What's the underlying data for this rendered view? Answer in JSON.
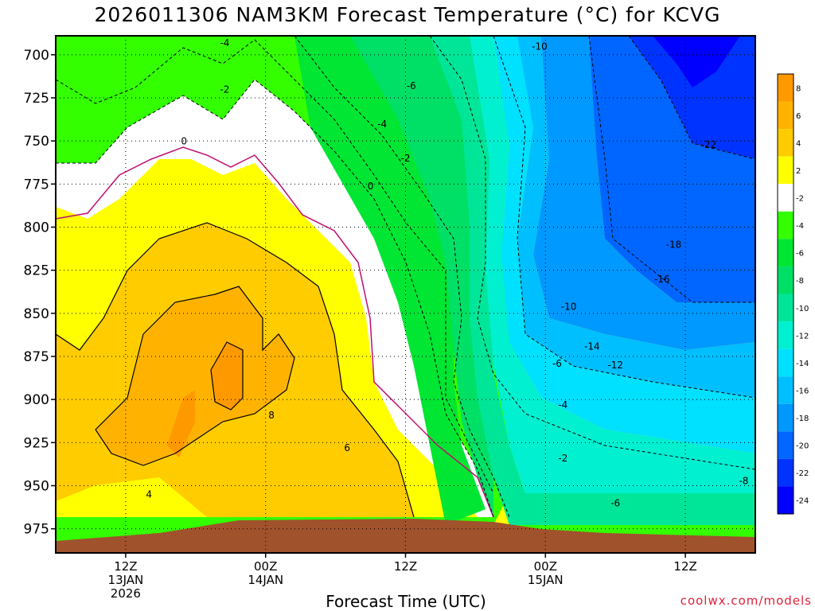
{
  "title": "2026011306 NAM3KM Forecast Temperature (°C) for KCVG",
  "xlabel": "Forecast Time (UTC)",
  "credit": "coolwx.com/models",
  "chart_data": {
    "type": "heatmap",
    "title": "2026011306 NAM3KM Forecast Temperature (°C) for KCVG",
    "xlabel": "Forecast Time (UTC)",
    "ylabel": "",
    "x_ticks": [
      {
        "lines": [
          "12Z",
          "13JAN",
          "2026"
        ],
        "hour": 6
      },
      {
        "lines": [
          "00Z",
          "14JAN"
        ],
        "hour": 18
      },
      {
        "lines": [
          "12Z"
        ],
        "hour": 30
      },
      {
        "lines": [
          "00Z",
          "15JAN"
        ],
        "hour": 42
      },
      {
        "lines": [
          "12Z"
        ],
        "hour": 54
      }
    ],
    "xlim_hours": [
      0,
      60
    ],
    "y_ticks": [
      700,
      725,
      750,
      775,
      800,
      825,
      850,
      875,
      900,
      925,
      950,
      975
    ],
    "ylim": [
      689,
      989
    ],
    "grid": true,
    "colorbar": {
      "labels": [
        "8",
        "6",
        "4",
        "2",
        "-2",
        "-4",
        "-6",
        "-8",
        "-10",
        "-12",
        "-14",
        "-16",
        "-18",
        "-20",
        "-22",
        "-24"
      ],
      "colors": [
        "#ff9900",
        "#ffb300",
        "#ffcc00",
        "#ffff00",
        "#ffffff",
        "#33ff00",
        "#00e633",
        "#00e066",
        "#00e699",
        "#00f0d0",
        "#00e0ff",
        "#00bfff",
        "#0099ff",
        "#0066ff",
        "#0033ff",
        "#0000ff"
      ]
    },
    "contour_labels": [
      "-4",
      "-2",
      "0",
      "-10",
      "-6",
      "-4",
      "-2",
      "0",
      "-22",
      "-18",
      "-16",
      "-10",
      "-14",
      "-12",
      "-6",
      "-4",
      "-2",
      "8",
      "6",
      "4",
      "-8",
      "-6"
    ]
  }
}
